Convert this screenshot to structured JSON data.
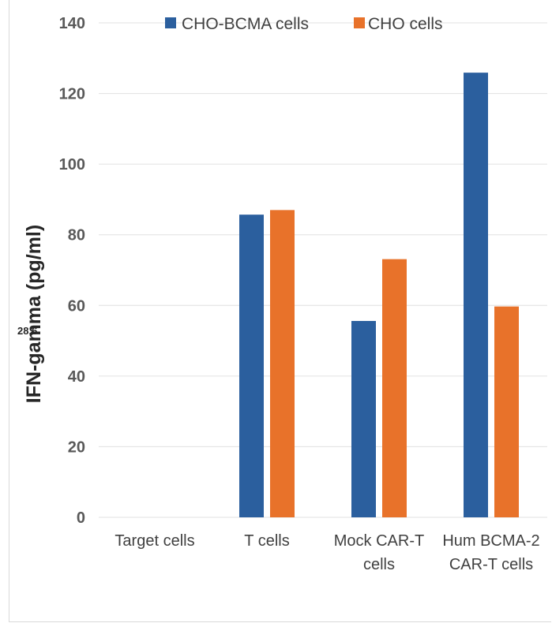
{
  "chart_data": {
    "type": "bar",
    "title": "",
    "xlabel": "",
    "ylabel": "IFN-gamma (pg/ml)",
    "ylim": [
      0,
      140
    ],
    "yticks": [
      0,
      20,
      40,
      60,
      80,
      100,
      120,
      140
    ],
    "grid": true,
    "legend_position": "top",
    "categories": [
      [
        "Target cells"
      ],
      [
        "T cells"
      ],
      [
        "Mock CAR-T",
        "cells"
      ],
      [
        "Hum BCMA-2",
        "CAR-T cells"
      ]
    ],
    "series": [
      {
        "name": "CHO-BCMA cells",
        "color": "#2b5f9e",
        "values": [
          0,
          85.7,
          55.6,
          125.9
        ]
      },
      {
        "name": "CHO cells",
        "color": "#e8722a",
        "values": [
          0,
          87.0,
          73.1,
          59.7
        ]
      }
    ],
    "annotation": "28.6"
  }
}
